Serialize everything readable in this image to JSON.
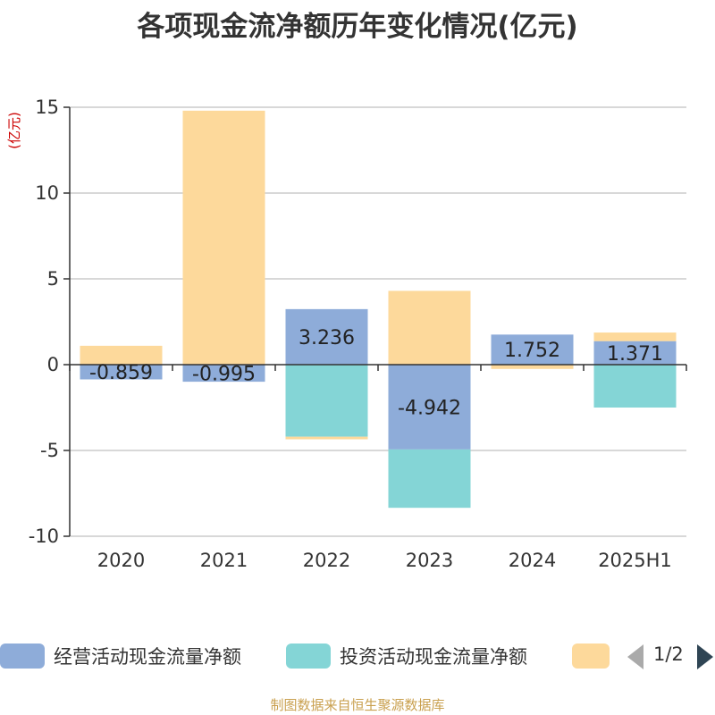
{
  "title": "各项现金流净额历年变化情况(亿元)",
  "source": "制图数据来自恒生聚源数据库",
  "legend_page": "1/2",
  "chart_data": {
    "type": "bar",
    "stacked": true,
    "title": "各项现金流净额历年变化情况(亿元)",
    "ylabel": "(亿元)",
    "ylim": [
      -10,
      15
    ],
    "yticks": [
      -10,
      -5,
      0,
      5,
      10,
      15
    ],
    "grid": true,
    "categories": [
      "2020",
      "2021",
      "2022",
      "2023",
      "2024",
      "2025H1"
    ],
    "series": [
      {
        "name": "经营活动现金流量净额",
        "color": "#8eacd9",
        "values": [
          -0.859,
          -0.995,
          3.236,
          -4.942,
          1.752,
          1.371
        ],
        "labels": [
          "-0.859",
          "-0.995",
          "3.236",
          "-4.942",
          "1.752",
          "1.371"
        ]
      },
      {
        "name": "投资活动现金流量净额",
        "color": "#84d5d6",
        "values": [
          0,
          0,
          -4.2,
          -3.4,
          0,
          -2.5
        ]
      },
      {
        "name": "",
        "color": "#fdd99b",
        "values": [
          1.1,
          14.8,
          -0.15,
          4.3,
          -0.25,
          0.5
        ]
      }
    ]
  }
}
